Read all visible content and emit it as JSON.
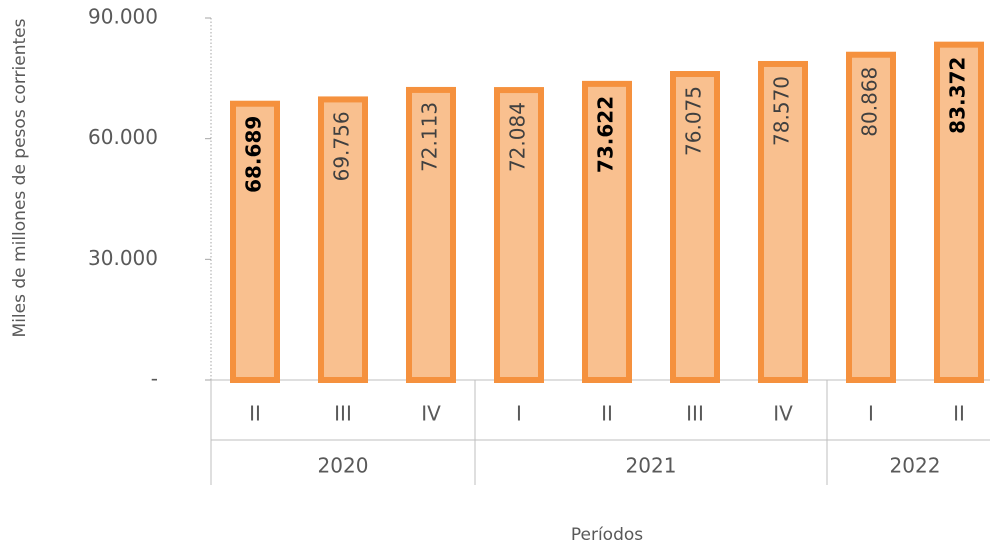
{
  "chart_data": {
    "type": "bar",
    "y_label": "Miles de millones de pesos corrientes",
    "x_label": "Períodos",
    "groups": [
      {
        "label": "2020",
        "categories": [
          "II",
          "III",
          "IV"
        ]
      },
      {
        "label": "2021",
        "categories": [
          "I",
          "II",
          "III",
          "IV"
        ]
      },
      {
        "label": "2022",
        "categories": [
          "I",
          "II"
        ]
      }
    ],
    "values": [
      68689,
      69756,
      72113,
      72084,
      73622,
      76075,
      78570,
      80868,
      83372
    ],
    "value_labels": [
      "68.689",
      "69.756",
      "72.113",
      "72.084",
      "73.622",
      "76.075",
      "78.570",
      "80.868",
      "83.372"
    ],
    "value_label_bold": [
      true,
      false,
      false,
      false,
      true,
      false,
      false,
      false,
      true
    ],
    "color": "#f9c08f",
    "edge_color": "#f5913e",
    "ylim": [
      0,
      90000
    ],
    "yticks": [
      {
        "value": 0,
        "label": "-"
      },
      {
        "value": 30000,
        "label": "30.000"
      },
      {
        "value": 60000,
        "label": "60.000"
      },
      {
        "value": 90000,
        "label": "90.000"
      }
    ]
  }
}
